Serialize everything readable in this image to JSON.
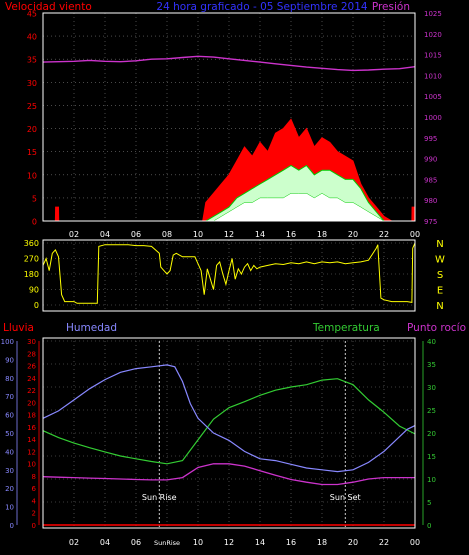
{
  "colors": {
    "background": "#000000",
    "frame": "#ffffff",
    "grid": "#777777",
    "wind_red": "#ff0000",
    "wind_avg_green": "#00cc00",
    "wind_gust_white": "#ffffff",
    "pressure_magenta": "#cc33cc",
    "direction_yellow": "#ffff00",
    "humidity_blue": "#8888ff",
    "temperature_green": "#33cc33",
    "dewpoint_magenta": "#cc33cc",
    "rain_red": "#ff0000",
    "title_blue": "#3333ff",
    "sun_white": "#ffffff"
  },
  "chart_data": [
    {
      "type": "area",
      "title": "24 hora graficado - 05 Septiembre 2014",
      "left_label": "Velocidad viento",
      "right_label": "Presión",
      "left_ticks": [
        "0",
        "5",
        "10",
        "15",
        "20",
        "25",
        "30",
        "35",
        "40",
        "45"
      ],
      "left_range": [
        0,
        45
      ],
      "right_ticks": [
        "975",
        "980",
        "985",
        "990",
        "995",
        "1000",
        "1005",
        "1010",
        "1015",
        "1020",
        "1025"
      ],
      "right_range": [
        975,
        1025
      ],
      "x_ticks": [
        "02",
        "04",
        "06",
        "08",
        "10",
        "12",
        "14",
        "16",
        "18",
        "20",
        "22",
        "00"
      ],
      "x_range": [
        0,
        24
      ],
      "grid": true,
      "series": [
        {
          "key": "gust",
          "x": [
            0,
            0.8,
            0.81,
            1.0,
            1.01,
            10.3,
            10.5,
            11,
            11.5,
            12,
            12.5,
            13,
            13.5,
            14,
            14.5,
            15,
            15.5,
            16,
            16.5,
            17,
            17.5,
            18,
            18.5,
            19,
            19.5,
            20,
            20.5,
            21,
            21.5,
            22,
            22.5,
            23,
            23.8,
            23.81,
            24
          ],
          "values": [
            0,
            0,
            3,
            3,
            0,
            0,
            4,
            6,
            8,
            10,
            13,
            16,
            14,
            17,
            15,
            19,
            20,
            22,
            18,
            20,
            16,
            18,
            17,
            15,
            14,
            13,
            8,
            5,
            3,
            1,
            0,
            0,
            0,
            3,
            3
          ]
        },
        {
          "key": "wind_avg",
          "x": [
            0,
            10.5,
            11,
            11.5,
            12,
            12.5,
            13,
            13.5,
            14,
            14.5,
            15,
            15.5,
            16,
            16.5,
            17,
            17.5,
            18,
            18.5,
            19,
            19.5,
            20,
            20.5,
            21,
            21.5,
            22,
            24
          ],
          "values": [
            0,
            0,
            1,
            2,
            3,
            5,
            6,
            7,
            8,
            9,
            10,
            11,
            12,
            11,
            12,
            10,
            11,
            11,
            10,
            9,
            9,
            7,
            4,
            2,
            0,
            0
          ]
        },
        {
          "key": "wind_low",
          "x": [
            0,
            11,
            11.5,
            12,
            12.5,
            13,
            13.5,
            14,
            14.5,
            15,
            15.5,
            16,
            16.5,
            17,
            17.5,
            18,
            18.5,
            19,
            19.5,
            20,
            20.5,
            21,
            21.5,
            22,
            24
          ],
          "values": [
            0,
            0,
            1,
            2,
            3,
            4,
            4,
            5,
            5,
            5,
            5,
            6,
            6,
            6,
            5,
            6,
            5,
            5,
            4,
            4,
            3,
            2,
            1,
            0,
            0
          ]
        },
        {
          "key": "pressure",
          "x": [
            0,
            1,
            2,
            3,
            4,
            5,
            6,
            7,
            8,
            9,
            10,
            11,
            12,
            13,
            14,
            15,
            16,
            17,
            18,
            19,
            20,
            21,
            22,
            23,
            24
          ],
          "values": [
            1013.2,
            1013.3,
            1013.4,
            1013.6,
            1013.4,
            1013.3,
            1013.5,
            1013.9,
            1014.0,
            1014.3,
            1014.6,
            1014.4,
            1014.0,
            1013.6,
            1013.2,
            1012.8,
            1012.4,
            1012.0,
            1011.7,
            1011.4,
            1011.2,
            1011.3,
            1011.5,
            1011.6,
            1012.1
          ]
        }
      ]
    },
    {
      "type": "line",
      "right_labels": [
        "N",
        "W",
        "S",
        "E",
        "N"
      ],
      "left_ticks": [
        "0",
        "90",
        "180",
        "270",
        "360"
      ],
      "left_range": [
        0,
        360
      ],
      "x_range": [
        0,
        24
      ],
      "grid": true,
      "series": [
        {
          "key": "direction",
          "x": [
            0,
            0.2,
            0.4,
            0.6,
            0.8,
            1.0,
            1.2,
            1.4,
            2.0,
            2.2,
            2.6,
            3.5,
            3.6,
            4.0,
            4.5,
            5.0,
            5.5,
            6.0,
            6.5,
            7.0,
            7.5,
            7.6,
            7.8,
            8.0,
            8.2,
            8.4,
            8.6,
            8.8,
            9.0,
            9.4,
            9.8,
            10.0,
            10.2,
            10.4,
            10.6,
            10.8,
            11.0,
            11.2,
            11.4,
            11.6,
            11.8,
            12.0,
            12.2,
            12.4,
            12.6,
            12.8,
            13.0,
            13.2,
            13.4,
            13.6,
            13.8,
            14.0,
            14.5,
            15.0,
            15.5,
            16.0,
            16.5,
            17.0,
            17.5,
            18.0,
            18.5,
            19.0,
            19.5,
            20.0,
            20.5,
            21.0,
            21.5,
            21.6,
            21.8,
            22.0,
            22.5,
            23.0,
            23.5,
            23.8,
            23.85,
            24
          ],
          "values": [
            230,
            270,
            200,
            300,
            320,
            280,
            60,
            20,
            20,
            10,
            10,
            10,
            340,
            350,
            350,
            350,
            350,
            345,
            345,
            340,
            300,
            220,
            200,
            180,
            200,
            290,
            300,
            290,
            280,
            280,
            280,
            240,
            200,
            60,
            210,
            150,
            90,
            230,
            250,
            180,
            120,
            200,
            270,
            150,
            210,
            180,
            220,
            240,
            200,
            230,
            210,
            220,
            230,
            240,
            235,
            245,
            240,
            250,
            240,
            250,
            245,
            250,
            240,
            245,
            250,
            260,
            330,
            350,
            40,
            30,
            20,
            20,
            20,
            15,
            330,
            360
          ]
        }
      ]
    },
    {
      "type": "line",
      "labels": {
        "rain": "Lluvia",
        "humidity": "Humedad",
        "temperature": "Temperatura",
        "dewpoint": "Punto rocío"
      },
      "humidity_ticks": [
        "0",
        "10",
        "20",
        "30",
        "40",
        "50",
        "60",
        "70",
        "80",
        "90",
        "100"
      ],
      "humidity_range": [
        0,
        100
      ],
      "rain_ticks": [
        "0",
        "2",
        "4",
        "6",
        "8",
        "10",
        "12",
        "14",
        "16",
        "18",
        "20",
        "22",
        "24",
        "26",
        "28",
        "30"
      ],
      "rain_range": [
        0,
        30
      ],
      "temperature_ticks": [
        "0",
        "5",
        "10",
        "15",
        "20",
        "25",
        "30",
        "35",
        "40"
      ],
      "temperature_range": [
        0,
        40
      ],
      "x_ticks": [
        "02",
        "04",
        "06",
        "SunRise",
        "10",
        "12",
        "14",
        "16",
        "18",
        "20",
        "22",
        "00"
      ],
      "x_range": [
        0,
        24
      ],
      "grid": true,
      "sun_labels": {
        "rise": "Sun Rise",
        "set": "Sun Set"
      },
      "sun_times": {
        "rise": 7.5,
        "set": 19.5
      },
      "series": [
        {
          "key": "humidity",
          "x": [
            0,
            1,
            2,
            3,
            4,
            5,
            6,
            7,
            8,
            8.5,
            9,
            9.5,
            10,
            11,
            12,
            13,
            14,
            15,
            16,
            17,
            18,
            19,
            20,
            21,
            22,
            23,
            23.5,
            24
          ],
          "values": [
            58,
            62,
            68,
            74,
            79,
            83,
            85,
            86,
            87,
            86,
            78,
            66,
            58,
            50,
            46,
            40,
            36,
            35,
            33,
            31,
            30,
            29,
            30,
            34,
            40,
            48,
            52,
            54
          ]
        },
        {
          "key": "temperature",
          "x": [
            0,
            1,
            2,
            3,
            4,
            5,
            6,
            7,
            8,
            9,
            10,
            11,
            12,
            13,
            14,
            15,
            16,
            17,
            18,
            19,
            20,
            21,
            22,
            23,
            24
          ],
          "values": [
            20.5,
            19,
            17.8,
            16.8,
            15.9,
            15,
            14.4,
            13.8,
            13.3,
            14,
            18.5,
            23,
            25.5,
            26.8,
            28.2,
            29.3,
            30,
            30.5,
            31.5,
            31.8,
            30.5,
            27.2,
            24.5,
            21.5,
            19.8
          ]
        },
        {
          "key": "dewpoint",
          "x": [
            0,
            1,
            2,
            3,
            4,
            5,
            6,
            7,
            8,
            9,
            10,
            11,
            12,
            13,
            14,
            15,
            16,
            17,
            18,
            19,
            20,
            21,
            22,
            23,
            24
          ],
          "values": [
            10.5,
            10.4,
            10.3,
            10.2,
            10.1,
            10.0,
            9.9,
            9.8,
            9.8,
            10.3,
            12.5,
            13.3,
            13.3,
            12.8,
            11.8,
            10.8,
            9.9,
            9.3,
            8.8,
            8.8,
            9.3,
            10.0,
            10.3,
            10.3,
            10.3
          ]
        },
        {
          "key": "rain",
          "x": [
            0,
            24
          ],
          "values": [
            0,
            0
          ]
        }
      ]
    }
  ]
}
